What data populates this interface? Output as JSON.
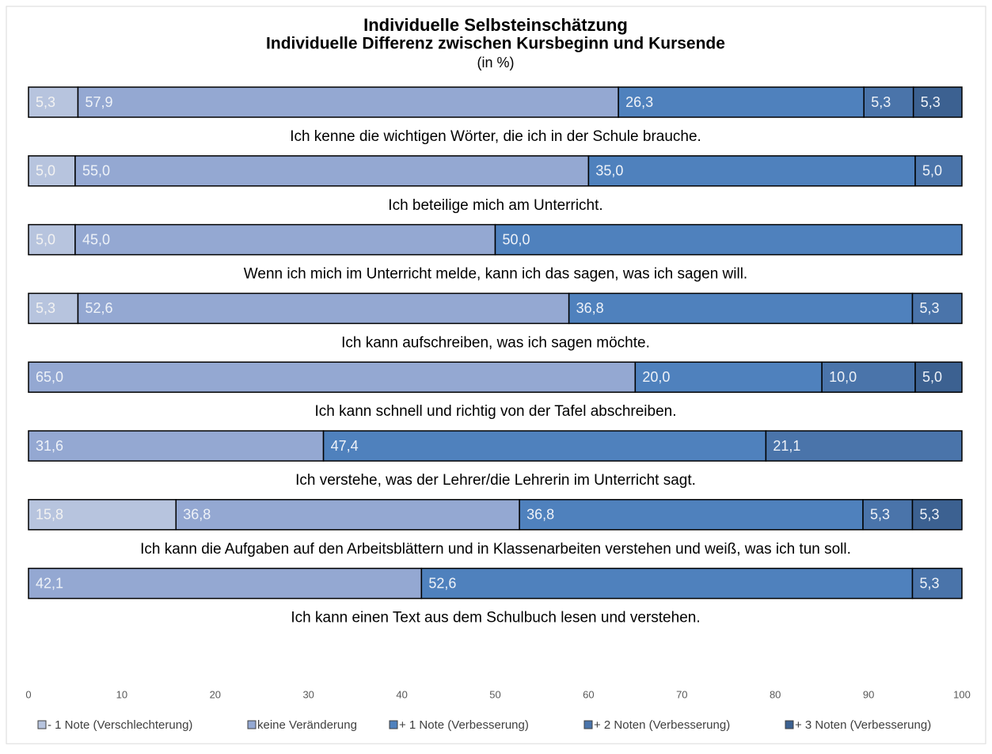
{
  "chart_data": {
    "type": "stacked_barh",
    "title": "Individuelle Selbsteinschätzung",
    "subtitle": "Individuelle Differenz zwischen Kursbeginn und Kursende",
    "unit_note": "(in %)",
    "categories": [
      "Ich kenne die wichtigen Wörter, die ich in der Schule brauche.",
      "Ich beteilige mich am Unterricht.",
      "Wenn ich mich im Unterricht melde, kann ich das sagen, was ich sagen will.",
      "Ich kann aufschreiben, was ich sagen möchte.",
      "Ich kann schnell und richtig von der Tafel abschreiben.",
      "Ich verstehe, was der Lehrer/die Lehrerin im Unterricht sagt.",
      "Ich kann die Aufgaben auf den Arbeitsblättern und in Klassenarbeiten verstehen und weiß, was ich tun soll.",
      "Ich kann einen Text aus dem Schulbuch lesen und verstehen."
    ],
    "series": [
      {
        "name": "- 1 Note (Verschlechterung)",
        "color": "#b7c4de",
        "values": [
          5.3,
          5.0,
          5.0,
          5.3,
          null,
          null,
          15.8,
          null
        ],
        "value_labels": [
          "5,3",
          "5,0",
          "5,0",
          "5,3",
          null,
          null,
          "15,8",
          null
        ]
      },
      {
        "name": "keine Veränderung",
        "color": "#94a8d2",
        "values": [
          57.9,
          55.0,
          45.0,
          52.6,
          65.0,
          31.6,
          36.8,
          42.1
        ],
        "value_labels": [
          "57,9",
          "55,0",
          "45,0",
          "52,6",
          "65,0",
          "31,6",
          "36,8",
          "42,1"
        ]
      },
      {
        "name": "+ 1 Note (Verbesserung)",
        "color": "#4f81bd",
        "values": [
          26.3,
          35.0,
          50.0,
          36.8,
          20.0,
          47.4,
          36.8,
          52.6
        ],
        "value_labels": [
          "26,3",
          "35,0",
          "50,0",
          "36,8",
          "20,0",
          "47,4",
          "36,8",
          "52,6"
        ]
      },
      {
        "name": "+ 2 Noten (Verbesserung)",
        "color": "#4a74aa",
        "values": [
          5.3,
          5.0,
          null,
          5.3,
          10.0,
          21.1,
          5.3,
          5.3
        ],
        "value_labels": [
          "5,3",
          "5,0",
          null,
          "5,3",
          "10,0",
          "21,1",
          "5,3",
          "5,3"
        ]
      },
      {
        "name": "+ 3 Noten (Verbesserung)",
        "color": "#3c6191",
        "values": [
          5.3,
          null,
          null,
          null,
          5.0,
          null,
          5.3,
          null
        ],
        "value_labels": [
          "5,3",
          null,
          null,
          null,
          "5,0",
          null,
          "5,3",
          null
        ]
      }
    ],
    "xlim": [
      0,
      100
    ],
    "xticks": [
      0,
      10,
      20,
      30,
      40,
      50,
      60,
      70,
      80,
      90,
      100
    ],
    "legend": "bottom"
  }
}
